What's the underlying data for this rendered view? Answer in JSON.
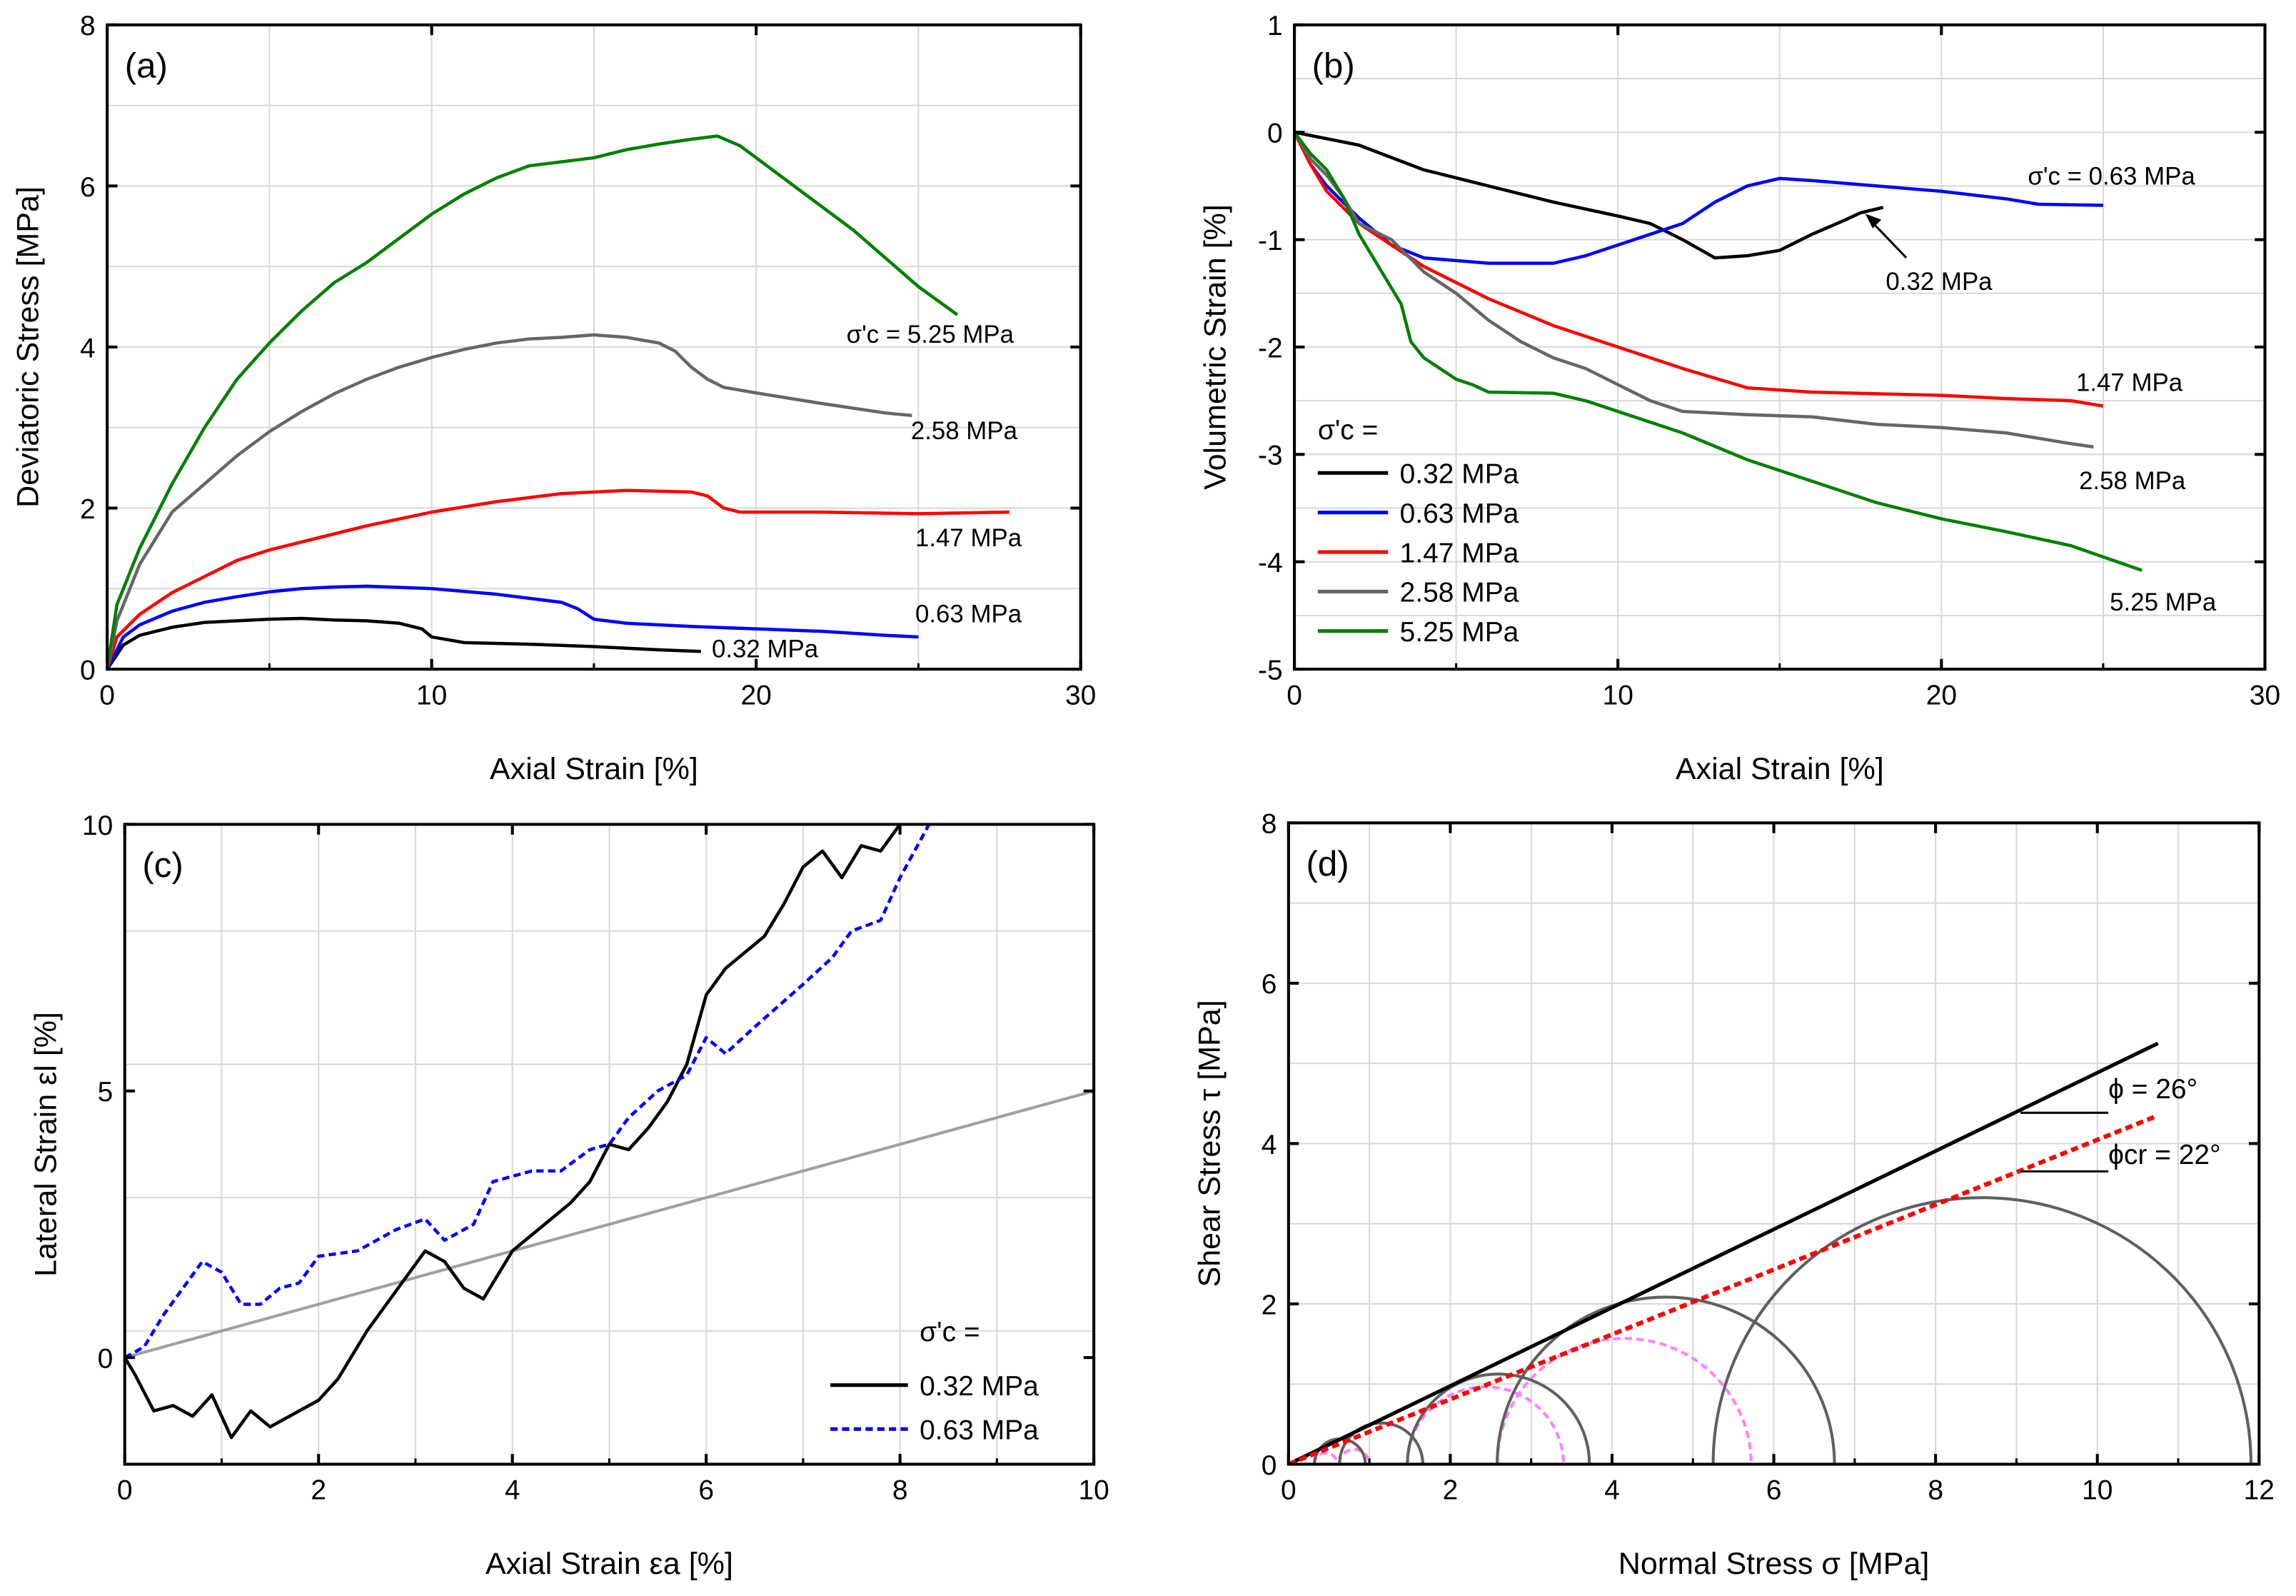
{
  "chart_data": [
    {
      "type": "line",
      "panel_label": "(a)",
      "xlabel": "Axial Strain [%]",
      "ylabel": "Deviatoric Stress [MPa]",
      "xlim": [
        0,
        30
      ],
      "ylim": [
        0,
        8
      ],
      "xticks": [
        0,
        10,
        20,
        30
      ],
      "yticks": [
        0,
        2,
        4,
        6,
        8
      ],
      "grid": true,
      "series": [
        {
          "name": "0.32 MPa",
          "color": "#000000",
          "label_text": "0.32 MPa",
          "x": [
            0,
            0.5,
            1,
            2,
            3,
            4,
            5,
            6,
            7,
            8,
            9,
            9.7,
            10,
            11,
            13,
            15,
            17,
            18.3
          ],
          "y": [
            0,
            0.3,
            0.42,
            0.52,
            0.58,
            0.6,
            0.62,
            0.63,
            0.61,
            0.6,
            0.57,
            0.5,
            0.4,
            0.33,
            0.31,
            0.28,
            0.24,
            0.22
          ]
        },
        {
          "name": "0.63 MPa",
          "color": "#0000ff",
          "label_text": "0.63 MPa",
          "x": [
            0,
            0.5,
            1,
            2,
            3,
            4,
            5,
            6,
            7,
            8,
            10,
            12,
            14,
            14.5,
            15,
            16,
            18,
            20,
            22,
            24,
            25
          ],
          "y": [
            0,
            0.4,
            0.55,
            0.72,
            0.83,
            0.9,
            0.96,
            1.0,
            1.02,
            1.03,
            1.0,
            0.93,
            0.83,
            0.75,
            0.62,
            0.57,
            0.53,
            0.5,
            0.47,
            0.42,
            0.4
          ]
        },
        {
          "name": "1.47 MPa",
          "color": "#ff0000",
          "label_text": "1.47 MPa",
          "x": [
            0,
            0.3,
            1,
            2,
            3,
            4,
            5,
            6,
            8,
            10,
            12,
            14,
            16,
            18,
            18.5,
            19,
            19.5,
            22,
            25,
            27.8
          ],
          "y": [
            0,
            0.4,
            0.68,
            0.95,
            1.15,
            1.35,
            1.48,
            1.58,
            1.78,
            1.95,
            2.08,
            2.18,
            2.22,
            2.2,
            2.15,
            2.0,
            1.95,
            1.95,
            1.93,
            1.95
          ]
        },
        {
          "name": "2.58 MPa",
          "color": "#666666",
          "label_text": "2.58 MPa",
          "x": [
            0,
            0.3,
            1,
            2,
            3,
            4,
            5,
            6,
            7,
            8,
            9,
            10,
            11,
            12,
            13,
            14,
            15,
            16,
            17,
            17.5,
            18,
            18.5,
            19,
            20,
            22,
            24,
            24.8
          ],
          "y": [
            0,
            0.6,
            1.3,
            1.95,
            2.3,
            2.65,
            2.95,
            3.2,
            3.42,
            3.6,
            3.75,
            3.87,
            3.97,
            4.05,
            4.1,
            4.12,
            4.15,
            4.12,
            4.05,
            3.95,
            3.75,
            3.6,
            3.5,
            3.43,
            3.3,
            3.18,
            3.15
          ]
        },
        {
          "name": "5.25 MPa",
          "color": "#008000",
          "label_text": "σ'c = 5.25 MPa",
          "x": [
            0,
            0.3,
            1,
            2,
            3,
            4,
            5,
            6,
            7,
            8,
            9,
            10,
            11,
            12,
            13,
            14,
            15,
            16,
            17,
            18,
            18.8,
            19.5,
            20,
            21,
            22,
            23,
            24,
            25,
            26.2
          ],
          "y": [
            0,
            0.8,
            1.5,
            2.3,
            3.0,
            3.6,
            4.05,
            4.45,
            4.8,
            5.05,
            5.35,
            5.65,
            5.9,
            6.1,
            6.25,
            6.3,
            6.35,
            6.45,
            6.52,
            6.58,
            6.62,
            6.5,
            6.35,
            6.05,
            5.75,
            5.45,
            5.1,
            4.75,
            4.4
          ]
        }
      ]
    },
    {
      "type": "line",
      "panel_label": "(b)",
      "xlabel": "Axial Strain [%]",
      "ylabel": "Volumetric Strain [%]",
      "xlim": [
        0,
        30
      ],
      "ylim": [
        -5,
        1
      ],
      "xticks": [
        0,
        10,
        20,
        30
      ],
      "yticks": [
        -5,
        -4,
        -3,
        -2,
        -1,
        0,
        1
      ],
      "grid": true,
      "legend_title": "σ'c =",
      "legend_placement": "bottom-left",
      "series": [
        {
          "name": "0.32 MPa",
          "color": "#000000",
          "label_text": "0.32 MPa",
          "x": [
            0,
            2,
            4,
            6,
            8,
            10,
            11,
            12,
            13,
            14,
            15,
            16,
            17,
            17.5,
            18.2
          ],
          "y": [
            0,
            -0.12,
            -0.35,
            -0.5,
            -0.65,
            -0.78,
            -0.85,
            -1.0,
            -1.17,
            -1.15,
            -1.1,
            -0.95,
            -0.82,
            -0.75,
            -0.7
          ]
        },
        {
          "name": "0.63 MPa",
          "color": "#0000ff",
          "label_text": "σ'c = 0.63 MPa",
          "x": [
            0,
            0.5,
            1,
            2,
            3,
            4,
            6,
            8,
            9,
            10,
            11,
            12,
            13,
            14,
            15,
            16,
            18,
            20,
            22,
            23,
            25
          ],
          "y": [
            0,
            -0.3,
            -0.5,
            -0.8,
            -1.05,
            -1.17,
            -1.22,
            -1.22,
            -1.15,
            -1.05,
            -0.95,
            -0.85,
            -0.65,
            -0.5,
            -0.43,
            -0.45,
            -0.5,
            -0.55,
            -0.62,
            -0.67,
            -0.68
          ]
        },
        {
          "name": "1.47 MPa",
          "color": "#ff0000",
          "label_text": "1.47 MPa",
          "x": [
            0,
            0.5,
            1,
            2,
            3,
            4,
            6,
            8,
            10,
            12,
            14,
            16,
            20,
            22,
            24,
            25
          ],
          "y": [
            0,
            -0.3,
            -0.55,
            -0.85,
            -1.05,
            -1.25,
            -1.55,
            -1.8,
            -2.0,
            -2.2,
            -2.38,
            -2.42,
            -2.45,
            -2.48,
            -2.5,
            -2.55
          ]
        },
        {
          "name": "2.58 MPa",
          "color": "#666666",
          "label_text": "2.58 MPa",
          "x": [
            0,
            0.5,
            1,
            1.5,
            2,
            3,
            4,
            5,
            6,
            7,
            8,
            9,
            10,
            11,
            12,
            14,
            16,
            18,
            20,
            22,
            24,
            24.7
          ],
          "y": [
            0,
            -0.25,
            -0.4,
            -0.6,
            -0.85,
            -1.0,
            -1.3,
            -1.5,
            -1.75,
            -1.95,
            -2.1,
            -2.2,
            -2.35,
            -2.5,
            -2.6,
            -2.63,
            -2.65,
            -2.72,
            -2.75,
            -2.8,
            -2.9,
            -2.93
          ]
        },
        {
          "name": "5.25 MPa",
          "color": "#008000",
          "label_text": "5.25 MPa",
          "x": [
            0,
            0.5,
            1,
            1.5,
            2,
            2.5,
            3,
            3.3,
            3.6,
            4,
            4.5,
            5,
            5.5,
            6,
            8,
            9,
            10,
            12,
            14,
            16,
            18,
            20,
            22,
            24,
            26.2
          ],
          "y": [
            0,
            -0.2,
            -0.35,
            -0.6,
            -0.95,
            -1.2,
            -1.45,
            -1.6,
            -1.95,
            -2.1,
            -2.2,
            -2.3,
            -2.35,
            -2.42,
            -2.43,
            -2.5,
            -2.6,
            -2.8,
            -3.05,
            -3.25,
            -3.45,
            -3.6,
            -3.72,
            -3.85,
            -4.08
          ]
        }
      ]
    },
    {
      "type": "line",
      "panel_label": "(c)",
      "xlabel": "Axial Strain εa [%]",
      "ylabel": "Lateral Strain εl [%]",
      "xlim": [
        0,
        10
      ],
      "ylim": [
        -2,
        10
      ],
      "xticks": [
        0,
        2,
        4,
        6,
        8,
        10
      ],
      "yticks": [
        0,
        5,
        10
      ],
      "grid": true,
      "legend_title": "σ'c =",
      "legend_placement": "bottom-right",
      "series": [
        {
          "name": "0.32 MPa",
          "color": "#000000",
          "style": "solid",
          "x": [
            0,
            0.1,
            0.3,
            0.5,
            0.7,
            0.9,
            1.1,
            1.3,
            1.5,
            1.7,
            2,
            2.2,
            2.5,
            2.7,
            2.9,
            3.1,
            3.3,
            3.5,
            3.7,
            4,
            4.2,
            4.4,
            4.6,
            4.8,
            5,
            5.2,
            5.4,
            5.6,
            5.8,
            6,
            6.2,
            6.4,
            6.6,
            6.8,
            7,
            7.2,
            7.4,
            7.6,
            7.8,
            8
          ],
          "y": [
            0,
            -0.3,
            -1,
            -0.9,
            -1.1,
            -0.7,
            -1.5,
            -1.0,
            -1.3,
            -1.1,
            -0.8,
            -0.4,
            0.5,
            1.0,
            1.5,
            2.0,
            1.8,
            1.3,
            1.1,
            2.0,
            2.3,
            2.6,
            2.9,
            3.3,
            4.0,
            3.9,
            4.3,
            4.8,
            5.5,
            6.8,
            7.3,
            7.6,
            7.9,
            8.5,
            9.2,
            9.5,
            9.0,
            9.6,
            9.5,
            10
          ]
        },
        {
          "name": "0.63 MPa",
          "color": "#0000ff",
          "style": "dashed",
          "x": [
            0,
            0.2,
            0.4,
            0.6,
            0.8,
            1,
            1.2,
            1.4,
            1.6,
            1.8,
            2,
            2.4,
            2.8,
            3.1,
            3.3,
            3.6,
            3.8,
            4.2,
            4.5,
            4.8,
            5,
            5.2,
            5.5,
            5.8,
            6,
            6.2,
            6.5,
            7,
            7.3,
            7.5,
            7.8,
            8,
            8.3
          ],
          "y": [
            0,
            0.2,
            0.8,
            1.3,
            1.8,
            1.6,
            1.0,
            1.0,
            1.3,
            1.4,
            1.9,
            2.0,
            2.4,
            2.6,
            2.2,
            2.5,
            3.3,
            3.5,
            3.5,
            3.9,
            4.0,
            4.5,
            5.0,
            5.3,
            6.0,
            5.7,
            6.2,
            7.0,
            7.5,
            8.0,
            8.2,
            9.0,
            10
          ]
        },
        {
          "name": "reference line",
          "color": "#a0a0a0",
          "style": "solid",
          "x": [
            0,
            10
          ],
          "y": [
            0,
            5
          ],
          "in_legend": false
        }
      ]
    },
    {
      "type": "line",
      "panel_label": "(d)",
      "xlabel": "Normal Stress σ [MPa]",
      "ylabel": "Shear Stress τ [MPa]",
      "xlim": [
        0,
        12
      ],
      "ylim": [
        0,
        8
      ],
      "xticks": [
        0,
        2,
        4,
        6,
        8,
        10,
        12
      ],
      "yticks": [
        0,
        2,
        4,
        6,
        8
      ],
      "grid": true,
      "envelopes": [
        {
          "name": "peak",
          "label_text": "ϕ = 26°",
          "color": "#000000",
          "style": "solid",
          "x": [
            0,
            10.75
          ],
          "y": [
            0,
            5.25
          ]
        },
        {
          "name": "critical",
          "label_text": "ϕcr = 22°",
          "color": "#ff0000",
          "style": "dashed",
          "x": [
            0,
            10.75
          ],
          "y": [
            0,
            4.35
          ]
        }
      ],
      "mohr_circles_peak": {
        "color": "#606060",
        "sigma3": [
          0.32,
          0.63,
          1.47,
          2.58,
          5.25
        ],
        "sigma1": [
          0.95,
          1.66,
          3.72,
          6.75,
          11.9
        ]
      },
      "mohr_circles_critical": {
        "color": "#ff80ff",
        "sigma3": [
          0.32,
          0.63,
          1.47,
          2.58
        ],
        "sigma1": [
          0.6,
          1.0,
          3.4,
          5.72
        ]
      }
    }
  ]
}
